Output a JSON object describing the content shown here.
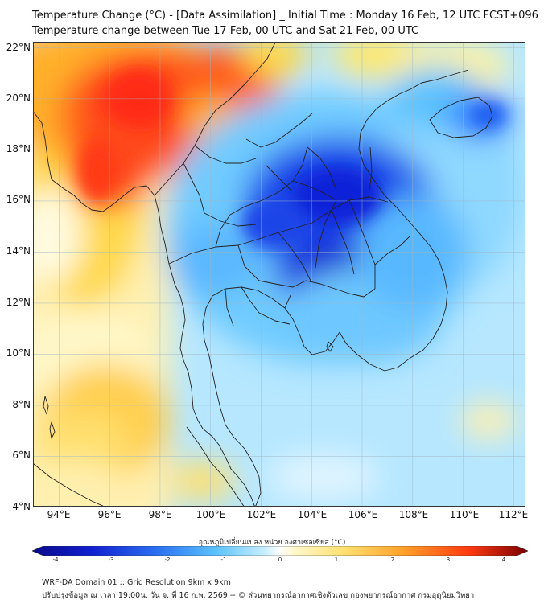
{
  "header": {
    "title_line1": "Temperature Change (°C) - [Data Assimilation] _ Initial Time : Monday 16 Feb, 12 UTC FCST+096",
    "title_line2": "Temperature change between Tue 17 Feb, 00 UTC and Sat 21 Feb, 00 UTC"
  },
  "map": {
    "lat_labels": [
      "22°N",
      "20°N",
      "18°N",
      "16°N",
      "14°N",
      "12°N",
      "10°N",
      "8°N",
      "6°N",
      "4°N"
    ],
    "lon_labels": [
      "94°E",
      "96°E",
      "98°E",
      "100°E",
      "102°E",
      "104°E",
      "106°E",
      "108°E",
      "110°E",
      "112°E"
    ],
    "lat_range": [
      4,
      22.2
    ],
    "lon_range": [
      93,
      112.5
    ],
    "colors": {
      "background": "#b6e7ff",
      "grid": "#9fb6c4",
      "coast": "#222222"
    }
  },
  "colorbar": {
    "title": "อุณหภูมิเปลี่ยนแปลง หน่วย องศาเซลเซียส (°C)",
    "tick_labels": [
      "-4",
      "-3",
      "-2",
      "-1",
      "0",
      "1",
      "2",
      "3",
      "4"
    ],
    "range": [
      -4,
      4
    ]
  },
  "footer": {
    "line1": "WRF-DA Domain 01 :: Grid Resolution 9km x 9km",
    "line2": "ปรับปรุงข้อมูล ณ เวลา 19:00น. วัน จ. ที่ 16 ก.พ. 2569 -- © ส่วนพยากรณ์อากาศเชิงตัวเลข กองพยากรณ์อากาศ กรมอุตุนิยมวิทยา"
  }
}
